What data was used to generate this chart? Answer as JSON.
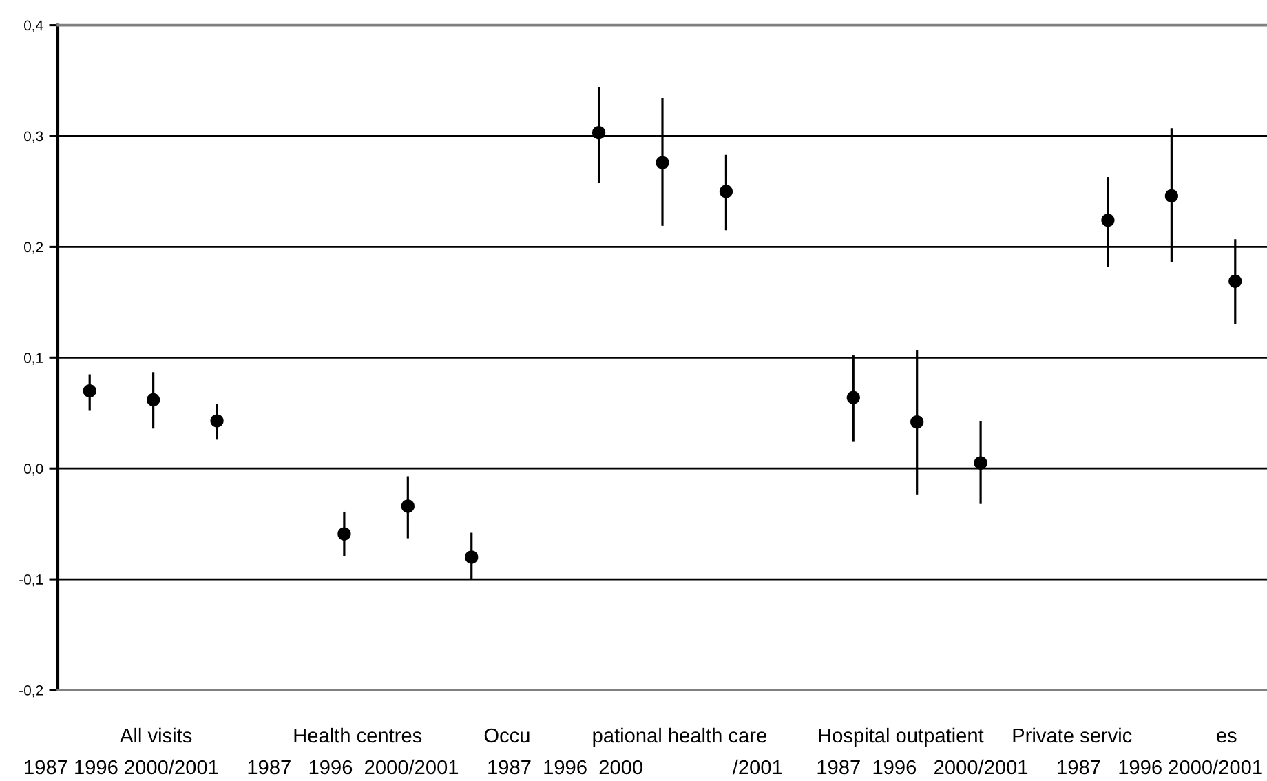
{
  "chart_data": {
    "type": "scatter",
    "categories": [
      null,
      null,
      null,
      null,
      null,
      null,
      null,
      null,
      null,
      null,
      null,
      null,
      null,
      null,
      null,
      null,
      null,
      null,
      null
    ],
    "values": [
      0.07,
      0.062,
      0.043,
      null,
      -0.059,
      -0.034,
      -0.08,
      null,
      0.303,
      0.276,
      0.25,
      null,
      0.064,
      0.042,
      0.005,
      null,
      0.224,
      0.246,
      0.169
    ],
    "errors": [
      [
        0.052,
        0.085
      ],
      [
        0.036,
        0.087
      ],
      [
        0.026,
        0.058
      ],
      null,
      [
        -0.079,
        -0.039
      ],
      [
        -0.063,
        -0.007
      ],
      [
        -0.1,
        -0.058
      ],
      null,
      [
        0.258,
        0.344
      ],
      [
        0.219,
        0.334
      ],
      [
        0.215,
        0.283
      ],
      null,
      [
        0.024,
        0.102
      ],
      [
        -0.024,
        0.107
      ],
      [
        -0.032,
        0.043
      ],
      null,
      [
        0.182,
        0.263
      ],
      [
        0.186,
        0.307
      ],
      [
        0.13,
        0.207
      ]
    ],
    "color": "#000000",
    "marker": "circle",
    "ylim": [
      -0.2,
      0.4
    ],
    "yticks": [
      {
        "value": -0.2,
        "label": "-0,2"
      },
      {
        "value": -0.1,
        "label": "-0,1"
      },
      {
        "value": 0.0,
        "label": "0,0"
      },
      {
        "value": 0.1,
        "label": "0,1"
      },
      {
        "value": 0.2,
        "label": "0,2"
      },
      {
        "value": 0.3,
        "label": "0,3"
      },
      {
        "value": 0.4,
        "label": "0,4"
      }
    ],
    "grid": "y",
    "annotations": [
      "All visits                  Health centres           Occu           pational health care         Hospital outpatient     Private servic               es",
      "1987 1996 2000/2001     1987   1996  2000/2001     1987  1996  2000                /2001      1987  1996   2000/2001     1987   1996 2000/2001"
    ]
  }
}
